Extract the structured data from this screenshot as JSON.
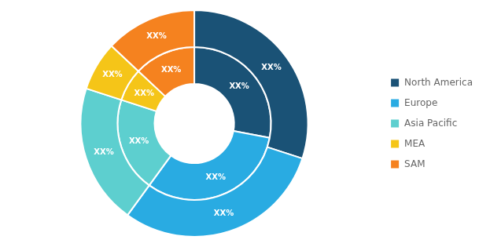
{
  "chart_data": {
    "type": "doughnut",
    "categories": [
      "North America",
      "Europe",
      "Asia Pacific",
      "MEA",
      "SAM"
    ],
    "colors": [
      "#1a5276",
      "#29abe2",
      "#5dcfcf",
      "#f5c518",
      "#f5821f"
    ],
    "series": [
      {
        "values": [
          30,
          30,
          20,
          7,
          13
        ],
        "value_labels": [
          "XX%",
          "XX%",
          "XX%",
          "XX%",
          "XX%"
        ]
      },
      {
        "values": [
          28,
          32,
          20,
          7,
          13
        ],
        "value_labels": [
          "XX%",
          "XX%",
          "XX%",
          "XX%",
          "XX%"
        ]
      }
    ],
    "data_labels": true,
    "legend": "right"
  }
}
